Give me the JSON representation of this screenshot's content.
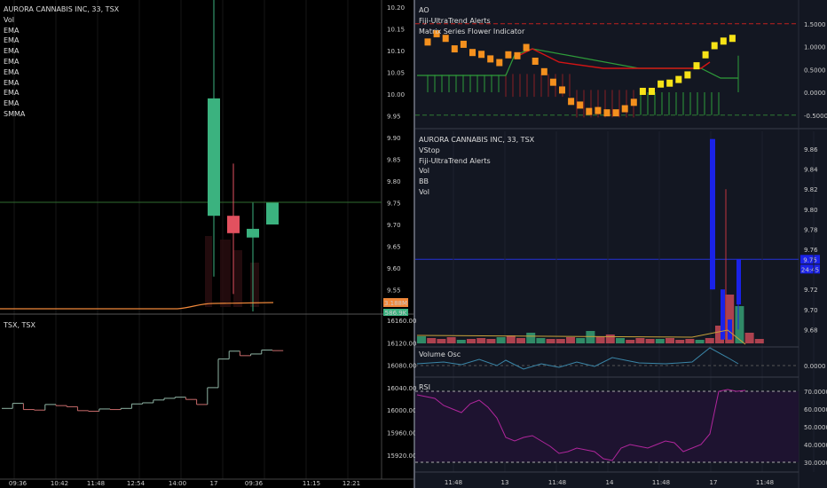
{
  "colors": {
    "up": "#3bb27f",
    "down": "#e2515f",
    "ma": "#f0883a",
    "grid": "#1f2430",
    "blue": "#1a22e8",
    "yellow": "#f7e317",
    "orange": "#f4901e",
    "red_line": "#d41414",
    "green_line": "#2e9c3a",
    "rsi": "#b0269c",
    "volosc": "#3a86a8"
  },
  "left_pane": {
    "legend": [
      "AURORA CANNABIS INC, 33, TSX",
      "Vol",
      "EMA",
      "EMA",
      "EMA",
      "EMA",
      "EMA",
      "EMA",
      "EMA",
      "EMA",
      "SMMA"
    ],
    "y_ticks": [
      "10.20",
      "10.15",
      "10.10",
      "10.05",
      "10.00",
      "9.95",
      "9.90",
      "9.85",
      "9.80",
      "9.75",
      "9.70",
      "9.65",
      "9.60",
      "9.55",
      "9.50"
    ],
    "price_badge": "3.188M",
    "price_badge2": "586.9K"
  },
  "left_bottom": {
    "legend": "TSX, TSX",
    "y_ticks": [
      "16160.00",
      "16120.00",
      "16080.00",
      "16040.00",
      "16000.00",
      "15960.00",
      "15920.00"
    ]
  },
  "left_x_ticks": [
    "09:36",
    "10:42",
    "11:48",
    "12:54",
    "14:00",
    "17",
    "09:36",
    "11:15",
    "12:21"
  ],
  "right_top": {
    "legend": [
      "AO",
      "Fiji-UltraTrend Alerts",
      "Matrix Series Flower Indicator"
    ],
    "y_ticks": [
      "1.5000",
      "1.0000",
      "0.5000",
      "0.0000",
      "-0.5000"
    ]
  },
  "right_main": {
    "legend": [
      "AURORA CANNABIS INC, 33, TSX",
      "VStop",
      "Fiji-UltraTrend Alerts",
      "Vol",
      "BB",
      "Vol"
    ],
    "y_ticks": [
      "9.86",
      "9.84",
      "9.82",
      "9.80",
      "9.78",
      "9.76",
      "9.72",
      "9.70",
      "9.68"
    ],
    "price_badge": "9.75",
    "time_badge": "24:45"
  },
  "vol_osc": {
    "legend": "Volume Osc",
    "y_tick": "0.0000"
  },
  "rsi": {
    "legend": "RSI",
    "y_ticks": [
      "70.0000",
      "60.0000",
      "50.0000",
      "40.0000",
      "30.0000"
    ]
  },
  "right_x_ticks": [
    "11:48",
    "13",
    "11:48",
    "14",
    "11:48",
    "17",
    "11:48"
  ],
  "chart_data": [
    {
      "type": "candlestick",
      "title": "AURORA CANNABIS INC, 33, TSX",
      "ylim": [
        9.48,
        10.22
      ],
      "candles": [
        {
          "o": 9.72,
          "h": 10.22,
          "l": 9.58,
          "c": 9.99
        },
        {
          "o": 9.72,
          "h": 9.84,
          "l": 9.54,
          "c": 9.68
        },
        {
          "o": 9.67,
          "h": 9.75,
          "l": 9.5,
          "c": 9.69
        },
        {
          "o": 9.7,
          "h": 9.75,
          "l": 9.7,
          "c": 9.75
        }
      ]
    },
    {
      "type": "line",
      "title": "TSX, TSX",
      "ylim": [
        15910,
        16170
      ],
      "values": [
        16003,
        16012,
        16001,
        16000,
        16010,
        16008,
        16006,
        15999,
        15998,
        16002,
        16001,
        16003,
        16011,
        16013,
        16018,
        16021,
        16023,
        16019,
        16010,
        16040,
        16091,
        16105,
        16097,
        16100,
        16107,
        16106
      ]
    },
    {
      "type": "bar",
      "title": "AO",
      "ylim": [
        -0.6,
        1.7
      ],
      "dots": [
        1.1,
        1.28,
        1.18,
        0.95,
        1.05,
        0.87,
        0.83,
        0.73,
        0.65,
        0.82,
        0.8,
        0.98,
        0.68,
        0.45,
        0.22,
        0.05,
        -0.2,
        -0.28,
        -0.42,
        -0.4,
        -0.45,
        -0.45,
        -0.36,
        -0.22,
        0.02,
        0.02,
        0.18,
        0.2,
        0.28,
        0.38,
        0.58,
        0.82,
        1.02,
        1.12,
        1.18
      ]
    },
    {
      "type": "line",
      "title": "RSI",
      "ylim": [
        28,
        72
      ],
      "values": [
        68,
        67,
        66,
        62,
        60,
        58,
        63,
        65,
        61,
        55,
        44,
        42,
        44,
        45,
        42,
        39,
        35,
        36,
        38,
        37,
        36,
        32,
        31,
        38,
        40,
        39,
        38,
        40,
        42,
        41,
        36,
        38,
        40,
        46,
        70,
        71,
        70,
        70.5
      ]
    }
  ]
}
